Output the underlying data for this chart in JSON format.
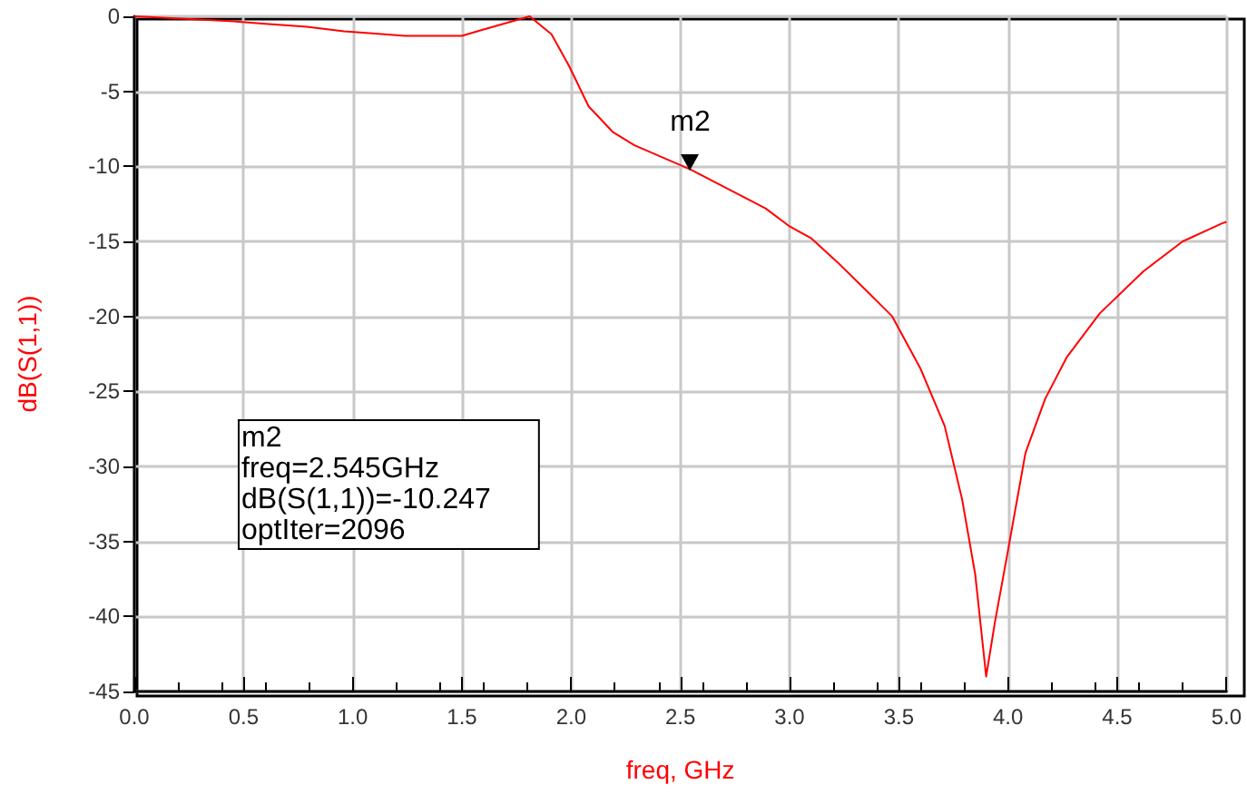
{
  "chart_data": {
    "type": "line",
    "xlabel": "freq, GHz",
    "ylabel": "dB(S(1,1))",
    "x": [
      0,
      0.15,
      0.42,
      0.6,
      0.79,
      0.96,
      1.06,
      1.24,
      1.5,
      1.57,
      1.81,
      1.91,
      1.99,
      2.08,
      2.19,
      2.29,
      2.545,
      2.89,
      3.0,
      3.1,
      3.22,
      3.36,
      3.47,
      3.6,
      3.71,
      3.79,
      3.85,
      3.9,
      3.94,
      4.0,
      4.08,
      4.17,
      4.27,
      4.42,
      4.62,
      4.8,
      4.98,
      5.0
    ],
    "series": [
      {
        "color": "#ff0000",
        "values": [
          0,
          -0.1,
          -0.3,
          -0.5,
          -0.7,
          -1.0,
          -1.1,
          -1.3,
          -1.3,
          -1.0,
          0,
          -1.2,
          -3.3,
          -6.0,
          -7.7,
          -8.6,
          -10.2,
          -12.8,
          -14.0,
          -14.8,
          -16.4,
          -18.4,
          -20.0,
          -23.5,
          -27.3,
          -32.2,
          -37.2,
          -44.0,
          -40.4,
          -35.6,
          -29.1,
          -25.5,
          -22.7,
          -19.8,
          -17.0,
          -15.0,
          -13.8,
          -13.7
        ]
      }
    ],
    "xlim": [
      0,
      5
    ],
    "xticks": [
      {
        "value": 0,
        "label": "0.0"
      },
      {
        "value": 0.5,
        "label": "0.5"
      },
      {
        "value": 1,
        "label": "1.0"
      },
      {
        "value": 1.5,
        "label": "1.5"
      },
      {
        "value": 2,
        "label": "2.0"
      },
      {
        "value": 2.5,
        "label": "2.5"
      },
      {
        "value": 3,
        "label": "3.0"
      },
      {
        "value": 3.5,
        "label": "3.5"
      },
      {
        "value": 4,
        "label": "4.0"
      },
      {
        "value": 4.5,
        "label": "4.5"
      },
      {
        "value": 5,
        "label": "5.0"
      }
    ],
    "ylim": [
      -45,
      0
    ],
    "yticks": [
      -45,
      -40,
      -35,
      -30,
      -25,
      -20,
      -15,
      -10,
      -5,
      0
    ],
    "grid": true,
    "marker": "none",
    "line_style": "solid",
    "annotations": [
      {
        "text": "m2",
        "x": 2.545,
        "y": -10.247
      },
      "m2\nfreq=2.545GHz\ndB(S(1,1))=-10.247\noptIter=2096"
    ]
  }
}
